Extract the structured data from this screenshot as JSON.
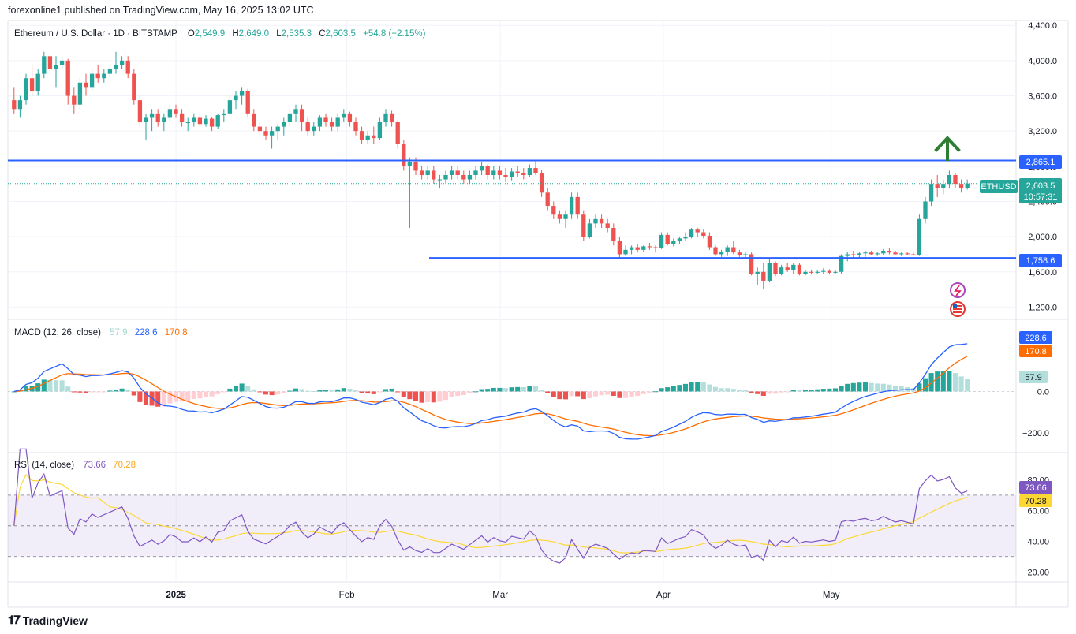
{
  "header": {
    "published": "forexonline1 published on TradingView.com, May 16, 2025 13:02 UTC"
  },
  "legend": {
    "symbol": "Ethereum / U.S. Dollar · 1D · BITSTAMP",
    "o_label": "O",
    "o_value": "2,549.9",
    "h_label": "H",
    "h_value": "2,649.0",
    "l_label": "L",
    "l_value": "2,535.3",
    "c_label": "C",
    "c_value": "2,603.5",
    "change": "+54.8 (+2.15%)"
  },
  "macd_legend": {
    "label": "MACD (12, 26, close)",
    "hist": "57.9",
    "macd": "228.6",
    "signal": "170.8"
  },
  "rsi_legend": {
    "label": "RSI (14, close)",
    "rsi": "73.66",
    "ma": "70.28"
  },
  "price_axis": {
    "ticks": [
      "4,400.0",
      "4,000.0",
      "3,600.0",
      "3,200.0",
      "2,800.0",
      "2,400.0",
      "2,000.0",
      "1,600.0",
      "1,200.0"
    ]
  },
  "macd_axis": {
    "ticks": [
      "0.0",
      "−200.0"
    ]
  },
  "rsi_axis": {
    "ticks": [
      "80.00",
      "60.00",
      "40.00",
      "20.00"
    ]
  },
  "time_axis": {
    "labels": [
      "2025",
      "Feb",
      "Mar",
      "Apr",
      "May"
    ]
  },
  "badges": {
    "resistance": "2,865.1",
    "support": "1,758.6",
    "symbol_tag": "ETHUSD",
    "last_price": "2,603.5",
    "countdown": "10:57:31",
    "macd_line": "228.6",
    "macd_signal": "170.8",
    "macd_hist": "57.9",
    "rsi_value": "73.66",
    "rsi_ma": "70.28"
  },
  "footer": {
    "brand": "TradingView"
  },
  "colors": {
    "up": "#26a69a",
    "down": "#ef5350",
    "level_line": "#2962ff",
    "macd_line": "#2962ff",
    "signal_line": "#ff6d00",
    "rsi_line": "#7e57c2",
    "rsi_ma": "#fdd835",
    "arrow": "#2e7d32"
  },
  "chart_data": {
    "type": "candlestick",
    "symbol": "ETHUSD",
    "resistance": 2865.1,
    "support": 1758.6,
    "last": 2603.5,
    "ylim": [
      1100,
      4450
    ],
    "ohlc": [
      [
        3550,
        3700,
        3400,
        3450
      ],
      [
        3450,
        3600,
        3350,
        3550
      ],
      [
        3550,
        3850,
        3500,
        3800
      ],
      [
        3800,
        3950,
        3600,
        3650
      ],
      [
        3650,
        3900,
        3600,
        3850
      ],
      [
        3850,
        4100,
        3800,
        4050
      ],
      [
        4050,
        4080,
        3850,
        3900
      ],
      [
        3900,
        4050,
        3700,
        3950
      ],
      [
        3950,
        4050,
        3900,
        4000
      ],
      [
        4000,
        4020,
        3500,
        3600
      ],
      [
        3600,
        3700,
        3400,
        3500
      ],
      [
        3500,
        3800,
        3450,
        3750
      ],
      [
        3750,
        3850,
        3600,
        3700
      ],
      [
        3700,
        3900,
        3650,
        3850
      ],
      [
        3850,
        3950,
        3750,
        3800
      ],
      [
        3800,
        3900,
        3750,
        3850
      ],
      [
        3850,
        3950,
        3800,
        3900
      ],
      [
        3900,
        4100,
        3850,
        3950
      ],
      [
        3950,
        4050,
        3900,
        4000
      ],
      [
        4000,
        4050,
        3800,
        3850
      ],
      [
        3850,
        3900,
        3500,
        3550
      ],
      [
        3550,
        3600,
        3250,
        3300
      ],
      [
        3300,
        3400,
        3100,
        3350
      ],
      [
        3350,
        3450,
        3200,
        3400
      ],
      [
        3400,
        3450,
        3250,
        3300
      ],
      [
        3300,
        3400,
        3200,
        3350
      ],
      [
        3350,
        3500,
        3300,
        3450
      ],
      [
        3450,
        3500,
        3350,
        3400
      ],
      [
        3400,
        3450,
        3250,
        3300
      ],
      [
        3300,
        3350,
        3200,
        3300
      ],
      [
        3300,
        3400,
        3250,
        3350
      ],
      [
        3350,
        3400,
        3250,
        3280
      ],
      [
        3280,
        3380,
        3250,
        3340
      ],
      [
        3340,
        3360,
        3200,
        3250
      ],
      [
        3250,
        3400,
        3220,
        3380
      ],
      [
        3380,
        3450,
        3300,
        3400
      ],
      [
        3400,
        3600,
        3380,
        3550
      ],
      [
        3550,
        3650,
        3450,
        3600
      ],
      [
        3600,
        3700,
        3500,
        3650
      ],
      [
        3650,
        3680,
        3350,
        3400
      ],
      [
        3400,
        3450,
        3200,
        3250
      ],
      [
        3250,
        3300,
        3150,
        3200
      ],
      [
        3200,
        3250,
        3100,
        3150
      ],
      [
        3150,
        3250,
        3000,
        3200
      ],
      [
        3200,
        3280,
        3100,
        3250
      ],
      [
        3250,
        3350,
        3150,
        3300
      ],
      [
        3300,
        3450,
        3250,
        3400
      ],
      [
        3400,
        3500,
        3300,
        3450
      ],
      [
        3450,
        3500,
        3200,
        3300
      ],
      [
        3300,
        3350,
        3150,
        3200
      ],
      [
        3200,
        3300,
        3150,
        3250
      ],
      [
        3250,
        3380,
        3200,
        3350
      ],
      [
        3350,
        3400,
        3250,
        3300
      ],
      [
        3300,
        3350,
        3200,
        3250
      ],
      [
        3250,
        3400,
        3200,
        3350
      ],
      [
        3350,
        3450,
        3300,
        3400
      ],
      [
        3400,
        3420,
        3250,
        3300
      ],
      [
        3300,
        3350,
        3150,
        3200
      ],
      [
        3200,
        3250,
        3050,
        3100
      ],
      [
        3100,
        3200,
        3050,
        3150
      ],
      [
        3150,
        3250,
        3050,
        3120
      ],
      [
        3120,
        3350,
        3100,
        3300
      ],
      [
        3300,
        3450,
        3250,
        3400
      ],
      [
        3400,
        3430,
        3250,
        3300
      ],
      [
        3300,
        3320,
        3000,
        3050
      ],
      [
        3050,
        3100,
        2750,
        2800
      ],
      [
        2800,
        2900,
        2100,
        2850
      ],
      [
        2850,
        2900,
        2700,
        2750
      ],
      [
        2750,
        2800,
        2650,
        2700
      ],
      [
        2700,
        2800,
        2650,
        2750
      ],
      [
        2750,
        2800,
        2600,
        2650
      ],
      [
        2650,
        2700,
        2550,
        2650
      ],
      [
        2650,
        2750,
        2600,
        2700
      ],
      [
        2700,
        2800,
        2650,
        2750
      ],
      [
        2750,
        2800,
        2650,
        2700
      ],
      [
        2700,
        2750,
        2600,
        2650
      ],
      [
        2650,
        2750,
        2600,
        2700
      ],
      [
        2700,
        2800,
        2650,
        2750
      ],
      [
        2750,
        2850,
        2700,
        2800
      ],
      [
        2800,
        2820,
        2650,
        2700
      ],
      [
        2700,
        2800,
        2650,
        2750
      ],
      [
        2750,
        2800,
        2650,
        2700
      ],
      [
        2700,
        2780,
        2620,
        2680
      ],
      [
        2680,
        2780,
        2640,
        2740
      ],
      [
        2740,
        2800,
        2680,
        2720
      ],
      [
        2720,
        2780,
        2650,
        2700
      ],
      [
        2700,
        2820,
        2680,
        2780
      ],
      [
        2780,
        2860,
        2700,
        2720
      ],
      [
        2720,
        2760,
        2450,
        2500
      ],
      [
        2500,
        2550,
        2300,
        2350
      ],
      [
        2350,
        2400,
        2200,
        2250
      ],
      [
        2250,
        2300,
        2150,
        2200
      ],
      [
        2200,
        2300,
        2100,
        2250
      ],
      [
        2250,
        2500,
        2200,
        2450
      ],
      [
        2450,
        2500,
        2200,
        2250
      ],
      [
        2250,
        2300,
        1950,
        2000
      ],
      [
        2000,
        2200,
        1980,
        2150
      ],
      [
        2150,
        2250,
        2100,
        2200
      ],
      [
        2200,
        2250,
        2100,
        2150
      ],
      [
        2150,
        2200,
        2050,
        2100
      ],
      [
        2100,
        2150,
        1900,
        1950
      ],
      [
        1950,
        2000,
        1750,
        1800
      ],
      [
        1800,
        1900,
        1780,
        1850
      ],
      [
        1850,
        1900,
        1800,
        1880
      ],
      [
        1880,
        1920,
        1820,
        1850
      ],
      [
        1850,
        1900,
        1830,
        1890
      ],
      [
        1890,
        1930,
        1850,
        1880
      ],
      [
        1880,
        1900,
        1820,
        1870
      ],
      [
        1870,
        2050,
        1860,
        2020
      ],
      [
        2020,
        2050,
        1900,
        1920
      ],
      [
        1920,
        1980,
        1890,
        1950
      ],
      [
        1950,
        2000,
        1920,
        1980
      ],
      [
        1980,
        2050,
        1950,
        2000
      ],
      [
        2000,
        2100,
        1980,
        2080
      ],
      [
        2080,
        2100,
        2000,
        2050
      ],
      [
        2050,
        2080,
        1980,
        2010
      ],
      [
        2010,
        2050,
        1850,
        1880
      ],
      [
        1880,
        1900,
        1780,
        1800
      ],
      [
        1800,
        1850,
        1770,
        1830
      ],
      [
        1830,
        1900,
        1780,
        1880
      ],
      [
        1880,
        1950,
        1800,
        1820
      ],
      [
        1820,
        1850,
        1770,
        1790
      ],
      [
        1790,
        1830,
        1760,
        1800
      ],
      [
        1800,
        1820,
        1560,
        1580
      ],
      [
        1580,
        1650,
        1450,
        1600
      ],
      [
        1600,
        1700,
        1400,
        1500
      ],
      [
        1500,
        1750,
        1480,
        1700
      ],
      [
        1700,
        1720,
        1550,
        1580
      ],
      [
        1580,
        1680,
        1560,
        1650
      ],
      [
        1650,
        1700,
        1600,
        1620
      ],
      [
        1620,
        1700,
        1580,
        1680
      ],
      [
        1680,
        1700,
        1560,
        1580
      ],
      [
        1580,
        1620,
        1560,
        1600
      ],
      [
        1600,
        1620,
        1570,
        1590
      ],
      [
        1590,
        1620,
        1570,
        1600
      ],
      [
        1600,
        1640,
        1580,
        1610
      ],
      [
        1610,
        1630,
        1570,
        1590
      ],
      [
        1590,
        1620,
        1580,
        1600
      ],
      [
        1600,
        1800,
        1580,
        1780
      ],
      [
        1780,
        1830,
        1720,
        1800
      ],
      [
        1800,
        1840,
        1760,
        1790
      ],
      [
        1790,
        1830,
        1760,
        1810
      ],
      [
        1810,
        1840,
        1770,
        1820
      ],
      [
        1820,
        1840,
        1790,
        1800
      ],
      [
        1800,
        1830,
        1780,
        1810
      ],
      [
        1810,
        1860,
        1790,
        1840
      ],
      [
        1840,
        1870,
        1800,
        1820
      ],
      [
        1820,
        1840,
        1790,
        1800
      ],
      [
        1800,
        1820,
        1780,
        1810
      ],
      [
        1810,
        1830,
        1790,
        1800
      ],
      [
        1800,
        1820,
        1780,
        1790
      ],
      [
        1790,
        2250,
        1780,
        2200
      ],
      [
        2200,
        2450,
        2150,
        2400
      ],
      [
        2400,
        2650,
        2350,
        2600
      ],
      [
        2600,
        2700,
        2450,
        2550
      ],
      [
        2550,
        2650,
        2480,
        2600
      ],
      [
        2600,
        2750,
        2550,
        2700
      ],
      [
        2700,
        2720,
        2550,
        2600
      ],
      [
        2600,
        2650,
        2500,
        2550
      ],
      [
        2550,
        2649,
        2535,
        2603.5
      ]
    ],
    "macd": {
      "macd_last": 228.6,
      "signal_last": 170.8,
      "hist_last": 57.9
    },
    "rsi": {
      "rsi_last": 73.66,
      "ma_last": 70.28,
      "upper_band": 70,
      "middle_band": 50,
      "lower_band": 30
    }
  }
}
